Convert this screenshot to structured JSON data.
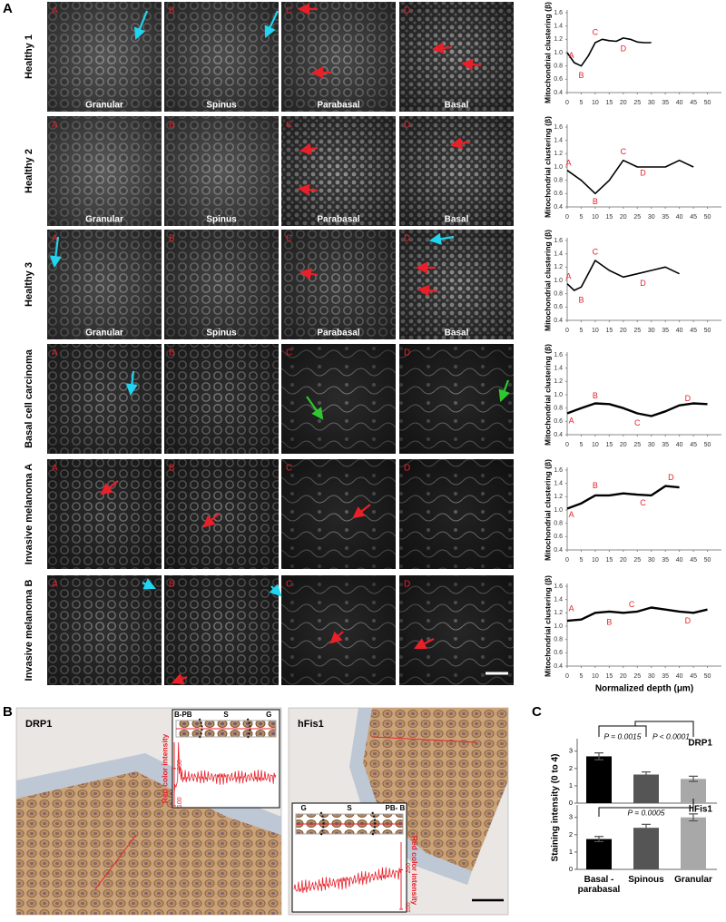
{
  "panel_a": {
    "label": "A",
    "xlabel": "Normalized depth (μm)",
    "rows": [
      {
        "name": "Healthy 1",
        "panels": [
          {
            "letter": "A",
            "layer": "Granular"
          },
          {
            "letter": "B",
            "layer": "Spinus"
          },
          {
            "letter": "C",
            "layer": "Parabasal"
          },
          {
            "letter": "D",
            "layer": "Basal"
          }
        ],
        "chart": {
          "type": "line",
          "ylabel": "Mitochondrial clustering (β)",
          "x": [
            0,
            2.5,
            5,
            7.5,
            10,
            12.5,
            15,
            17.5,
            20,
            22.5,
            25,
            27.5,
            30
          ],
          "values": [
            1.0,
            0.85,
            0.8,
            0.95,
            1.15,
            1.2,
            1.18,
            1.17,
            1.22,
            1.2,
            1.16,
            1.15,
            1.15
          ],
          "annotations": [
            {
              "text": "A",
              "x": 1.5,
              "y": 0.95
            },
            {
              "text": "B",
              "x": 5,
              "y": 0.65
            },
            {
              "text": "C",
              "x": 10,
              "y": 1.3
            },
            {
              "text": "D",
              "x": 20,
              "y": 1.05
            }
          ],
          "xlim": [
            0,
            55
          ],
          "xticks": [
            0,
            5,
            10,
            15,
            20,
            25,
            30,
            35,
            40,
            45,
            50
          ],
          "ylim": [
            0.4,
            1.6
          ],
          "yticks": [
            0.4,
            0.6,
            0.8,
            {
              "value": 1,
              "label": "1.0"
            },
            1.2,
            1.4,
            1.6
          ],
          "color": "#000000"
        }
      },
      {
        "name": "Healthy 2",
        "panels": [
          {
            "letter": "A",
            "layer": "Granular"
          },
          {
            "letter": "B",
            "layer": "Spinus"
          },
          {
            "letter": "C",
            "layer": "Parabasal"
          },
          {
            "letter": "D",
            "layer": "Basal"
          }
        ],
        "chart": {
          "type": "line",
          "ylabel": "Mitochondrial clustering (β)",
          "x": [
            0,
            5,
            10,
            15,
            20,
            25,
            30,
            35,
            40,
            45
          ],
          "values": [
            0.95,
            0.8,
            0.6,
            0.8,
            1.1,
            1.0,
            1.0,
            1.0,
            1.1,
            1.0
          ],
          "annotations": [
            {
              "text": "A",
              "x": 0.5,
              "y": 1.05
            },
            {
              "text": "B",
              "x": 10,
              "y": 0.47
            },
            {
              "text": "C",
              "x": 20,
              "y": 1.22
            },
            {
              "text": "D",
              "x": 27,
              "y": 0.9
            }
          ],
          "xlim": [
            0,
            55
          ],
          "xticks": [
            0,
            5,
            10,
            15,
            20,
            25,
            30,
            35,
            40,
            45,
            50
          ],
          "ylim": [
            0.4,
            1.6
          ],
          "yticks": [
            0.4,
            0.6,
            0.8,
            {
              "value": 1,
              "label": "1.0"
            },
            1.2,
            1.4,
            1.6
          ],
          "color": "#000000"
        }
      },
      {
        "name": "Healthy 3",
        "panels": [
          {
            "letter": "A",
            "layer": "Granular"
          },
          {
            "letter": "B",
            "layer": "Spinus"
          },
          {
            "letter": "C",
            "layer": "Parabasal"
          },
          {
            "letter": "D",
            "layer": "Basal"
          }
        ],
        "chart": {
          "type": "line",
          "ylabel": "Mitochondrial clustering (β)",
          "x": [
            0,
            2.5,
            5,
            7.5,
            10,
            15,
            20,
            25,
            30,
            35,
            40
          ],
          "values": [
            0.95,
            0.85,
            0.9,
            1.1,
            1.3,
            1.15,
            1.05,
            1.1,
            1.15,
            1.2,
            1.1
          ],
          "annotations": [
            {
              "text": "A",
              "x": 0.5,
              "y": 1.05
            },
            {
              "text": "B",
              "x": 5,
              "y": 0.7
            },
            {
              "text": "C",
              "x": 10,
              "y": 1.42
            },
            {
              "text": "D",
              "x": 27,
              "y": 0.95
            }
          ],
          "xlim": [
            0,
            55
          ],
          "xticks": [
            0,
            5,
            10,
            15,
            20,
            25,
            30,
            35,
            40,
            45,
            50
          ],
          "ylim": [
            0.4,
            1.6
          ],
          "yticks": [
            0.4,
            0.6,
            0.8,
            {
              "value": 1,
              "label": "1.0"
            },
            1.2,
            1.4,
            1.6
          ],
          "color": "#000000"
        }
      },
      {
        "name": "Basal cell carcinoma",
        "panels": [
          {
            "letter": "A"
          },
          {
            "letter": "B"
          },
          {
            "letter": "C"
          },
          {
            "letter": "D"
          }
        ],
        "chart": {
          "type": "line",
          "ylabel": "Mitochondrial clustering (β)",
          "x": [
            0,
            5,
            10,
            15,
            20,
            25,
            30,
            35,
            40,
            45,
            50
          ],
          "values": [
            0.72,
            0.8,
            0.87,
            0.86,
            0.8,
            0.72,
            0.68,
            0.75,
            0.84,
            0.87,
            0.86
          ],
          "annotations": [
            {
              "text": "A",
              "x": 1.5,
              "y": 0.6
            },
            {
              "text": "B",
              "x": 10,
              "y": 0.98
            },
            {
              "text": "C",
              "x": 25,
              "y": 0.57
            },
            {
              "text": "D",
              "x": 43,
              "y": 0.94
            }
          ],
          "xlim": [
            0,
            55
          ],
          "xticks": [
            0,
            5,
            10,
            15,
            20,
            25,
            30,
            35,
            40,
            45,
            50
          ],
          "ylim": [
            0.4,
            1.6
          ],
          "yticks": [
            0.4,
            0.6,
            0.8,
            {
              "value": 1,
              "label": "1.0"
            },
            1.2,
            1.4,
            1.6
          ],
          "color": "#000000"
        }
      },
      {
        "name": "Invasive melanoma A",
        "panels": [
          {
            "letter": "A"
          },
          {
            "letter": "B"
          },
          {
            "letter": "C"
          },
          {
            "letter": "D"
          }
        ],
        "chart": {
          "type": "line",
          "ylabel": "Mitochondrial clustering (β)",
          "x": [
            0,
            5,
            10,
            15,
            20,
            25,
            30,
            35,
            40
          ],
          "values": [
            1.02,
            1.1,
            1.22,
            1.22,
            1.25,
            1.23,
            1.22,
            1.36,
            1.34
          ],
          "annotations": [
            {
              "text": "A",
              "x": 1.5,
              "y": 0.92
            },
            {
              "text": "B",
              "x": 10,
              "y": 1.36
            },
            {
              "text": "C",
              "x": 27,
              "y": 1.1
            },
            {
              "text": "D",
              "x": 37,
              "y": 1.48
            }
          ],
          "xlim": [
            0,
            55
          ],
          "xticks": [
            0,
            5,
            10,
            15,
            20,
            25,
            30,
            35,
            40,
            45,
            50
          ],
          "ylim": [
            0.4,
            1.6
          ],
          "yticks": [
            0.4,
            0.6,
            0.8,
            {
              "value": 1,
              "label": "1.0"
            },
            1.2,
            1.4,
            1.6
          ],
          "color": "#000000"
        }
      },
      {
        "name": "Invasive melanoma B",
        "panels": [
          {
            "letter": "A"
          },
          {
            "letter": "B"
          },
          {
            "letter": "C"
          },
          {
            "letter": "D"
          }
        ],
        "chart": {
          "type": "line",
          "ylabel": "Mitochondrial clustering (β)",
          "x": [
            0,
            5,
            10,
            15,
            20,
            25,
            30,
            35,
            40,
            45,
            50
          ],
          "values": [
            1.08,
            1.1,
            1.2,
            1.22,
            1.2,
            1.22,
            1.28,
            1.25,
            1.22,
            1.2,
            1.25
          ],
          "annotations": [
            {
              "text": "A",
              "x": 1.5,
              "y": 1.26
            },
            {
              "text": "B",
              "x": 15,
              "y": 1.05
            },
            {
              "text": "C",
              "x": 23,
              "y": 1.32
            },
            {
              "text": "D",
              "x": 43,
              "y": 1.07
            }
          ],
          "xlim": [
            0,
            55
          ],
          "xticks": [
            0,
            5,
            10,
            15,
            20,
            25,
            30,
            35,
            40,
            45,
            50
          ],
          "ylim": [
            0.4,
            1.6
          ],
          "yticks": [
            0.4,
            0.6,
            0.8,
            {
              "value": 1,
              "label": "1.0"
            },
            1.2,
            1.4,
            1.6
          ],
          "color": "#000000"
        }
      }
    ]
  },
  "panel_b": {
    "label": "B",
    "images": [
      {
        "title": "DRP1",
        "inset": {
          "regions": [
            "B-PB",
            "S",
            "G"
          ],
          "ylabel": "Red color intensity",
          "ylim": [
            100,
            270
          ],
          "yticks": [
            100,
            200
          ]
        }
      },
      {
        "title": "hFis1",
        "inset": {
          "regions": [
            "G",
            "S",
            "PB- B"
          ],
          "ylabel": "Red color intensity",
          "ylim": [
            100,
            270
          ],
          "yticks": [
            100,
            200
          ]
        }
      }
    ]
  },
  "panel_c": {
    "label": "C",
    "type": "bar",
    "ylabel": "Staining intensity (0 to 4)",
    "categories": [
      "Basal - parabasal",
      "Spinous",
      "Granular"
    ],
    "colors": [
      "#000000",
      "#555555",
      "#a8a8a8"
    ],
    "series": [
      {
        "name": "DRP1",
        "values": [
          2.7,
          1.65,
          1.4
        ],
        "errors": [
          0.2,
          0.15,
          0.15
        ],
        "p_values": [
          "P = 0.0015",
          "P < 0.0001"
        ]
      },
      {
        "name": "hFis1",
        "values": [
          1.75,
          2.4,
          3.0
        ],
        "errors": [
          0.15,
          0.2,
          0.2
        ],
        "p_values": [
          "P = 0.0005"
        ]
      }
    ],
    "ylim": [
      0,
      3.3
    ],
    "yticks": [
      0,
      1,
      2,
      3
    ]
  }
}
